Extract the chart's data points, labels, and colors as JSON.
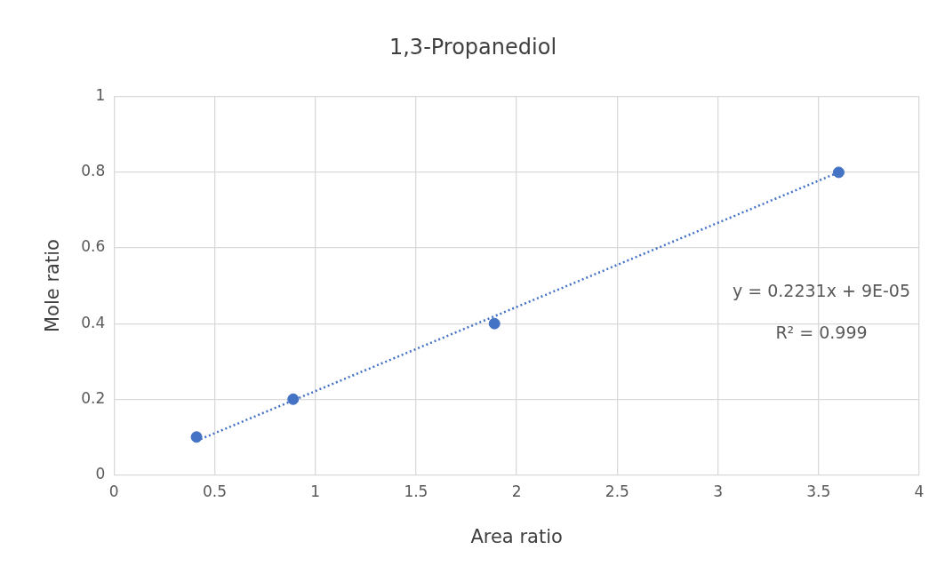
{
  "chart_data": {
    "type": "scatter",
    "title": "1,3-Propanediol",
    "xlabel": "Area ratio",
    "ylabel": "Mole ratio",
    "series": [
      {
        "color": "#4472c4",
        "x": [
          0.41,
          0.89,
          1.89,
          3.6
        ],
        "values": [
          0.1,
          0.2,
          0.4,
          0.8
        ],
        "marker": "circle"
      },
      {
        "type": "line",
        "color": "#4472c4",
        "x": [
          0.41,
          3.6
        ],
        "values": [
          0.09,
          0.8
        ],
        "marker": "none",
        "line_style": "dotted"
      }
    ],
    "annotations": [
      "y = 0.2231x + 9E-05",
      "R² = 0.999"
    ],
    "xlim": [
      0,
      4
    ],
    "xticks": [
      0,
      0.5,
      1,
      1.5,
      2,
      2.5,
      3,
      3.5,
      4
    ],
    "ylim": [
      0,
      1
    ],
    "yticks": [
      0,
      0.2,
      0.4,
      0.6,
      0.8,
      1
    ],
    "grid": true,
    "legend": false
  }
}
